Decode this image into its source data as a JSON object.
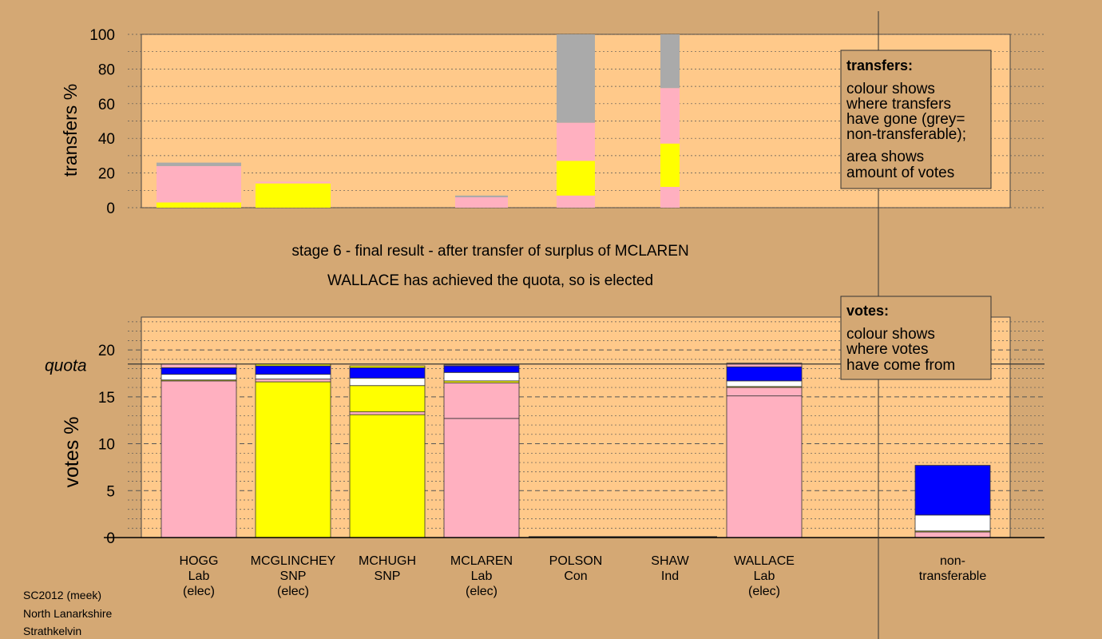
{
  "stage_lines": [
    "stage 6 - final result - after transfer of surplus of MCLAREN",
    "WALLACE has achieved the quota, so is elected"
  ],
  "transfers_legend": {
    "title": "transfers:",
    "lines": [
      "colour shows",
      "where transfers",
      "have gone (grey=",
      "non-transferable);"
    ],
    "lines2": [
      "area shows",
      "amount of votes"
    ]
  },
  "votes_legend": {
    "title": "votes:",
    "lines": [
      "colour shows",
      "where votes",
      "have come from"
    ]
  },
  "footer": [
    "SC2012 (meek)",
    "North Lanarkshire",
    "Strathkelvin"
  ],
  "quota_label": "quota",
  "colors": {
    "background": "#d4a874",
    "plot": "#ffc98a",
    "Lab": "#ffb0c0",
    "SNP": "#ffff00",
    "Con": "#0000ff",
    "Ind": "#ffffff",
    "nontransferable": "#aaaaaa"
  },
  "chart_data": [
    {
      "type": "bar",
      "name": "transfers",
      "ylabel": "transfers %",
      "ylim": [
        0,
        100
      ],
      "yticks": [
        0,
        20,
        40,
        60,
        80,
        100
      ],
      "grid": true,
      "columns": [
        {
          "segments": [
            {
              "color": "SNP",
              "value": 3
            },
            {
              "color": "Lab",
              "value": 21
            },
            {
              "color": "nontransferable",
              "value": 2
            }
          ]
        },
        {
          "segments": [
            {
              "color": "SNP",
              "value": 14
            },
            {
              "color": "Lab",
              "value": 1
            }
          ]
        },
        {
          "segments": []
        },
        {
          "segments": [
            {
              "color": "Lab",
              "value": 6
            },
            {
              "color": "nontransferable",
              "value": 1
            }
          ]
        },
        {
          "segments": [
            {
              "color": "Lab",
              "value": 7
            },
            {
              "color": "SNP",
              "value": 20
            },
            {
              "color": "Lab",
              "value": 22
            },
            {
              "color": "nontransferable",
              "value": 51
            }
          ]
        },
        {
          "segments": [
            {
              "color": "Lab",
              "value": 12
            },
            {
              "color": "SNP",
              "value": 25
            },
            {
              "color": "Lab",
              "value": 32
            },
            {
              "color": "nontransferable",
              "value": 31
            }
          ]
        }
      ]
    },
    {
      "type": "bar",
      "name": "votes",
      "ylabel": "votes %",
      "ylim": [
        0,
        23.5
      ],
      "yticks": [
        0,
        5,
        10,
        15,
        20
      ],
      "quota": 18.5,
      "grid": true,
      "categories": [
        {
          "name": "HOGG",
          "party": "Lab",
          "status": "(elec)"
        },
        {
          "name": "MCGLINCHEY",
          "party": "SNP",
          "status": "(elec)"
        },
        {
          "name": "MCHUGH",
          "party": "SNP",
          "status": ""
        },
        {
          "name": "MCLAREN",
          "party": "Lab",
          "status": "(elec)"
        },
        {
          "name": "POLSON",
          "party": "Con",
          "status": ""
        },
        {
          "name": "SHAW",
          "party": "Ind",
          "status": ""
        },
        {
          "name": "WALLACE",
          "party": "Lab",
          "status": "(elec)"
        },
        {
          "name": "non-",
          "party": "transferable",
          "status": ""
        }
      ],
      "series_stacks": [
        [
          {
            "color": "Lab",
            "value": 16.7
          },
          {
            "color": "SNP",
            "value": 0.1
          },
          {
            "color": "Ind",
            "value": 0.6
          },
          {
            "color": "Con",
            "value": 0.7
          },
          {
            "color": "Lab",
            "value": 0.4
          }
        ],
        [
          {
            "color": "SNP",
            "value": 16.6
          },
          {
            "color": "Lab",
            "value": 0.3
          },
          {
            "color": "Ind",
            "value": 0.5
          },
          {
            "color": "Con",
            "value": 0.9
          },
          {
            "color": "SNP",
            "value": 0.2
          }
        ],
        [
          {
            "color": "SNP",
            "value": 13.1
          },
          {
            "color": "Lab",
            "value": 0.3
          },
          {
            "color": "SNP",
            "value": 2.8
          },
          {
            "color": "Ind",
            "value": 0.8
          },
          {
            "color": "Con",
            "value": 1.1
          },
          {
            "color": "SNP",
            "value": 0.2
          }
        ],
        [
          {
            "color": "Lab",
            "value": 12.7
          },
          {
            "color": "Lab",
            "value": 3.8
          },
          {
            "color": "SNP",
            "value": 0.2
          },
          {
            "color": "Ind",
            "value": 0.9
          },
          {
            "color": "Con",
            "value": 0.7
          },
          {
            "color": "Lab",
            "value": 0.1
          }
        ],
        [],
        [],
        [
          {
            "color": "Lab",
            "value": 15.1
          },
          {
            "color": "Lab",
            "value": 0.9
          },
          {
            "color": "SNP",
            "value": 0.1
          },
          {
            "color": "Ind",
            "value": 0.6
          },
          {
            "color": "Con",
            "value": 1.5
          },
          {
            "color": "Lab",
            "value": 0.4
          }
        ],
        [
          {
            "color": "Lab",
            "value": 0.6
          },
          {
            "color": "SNP",
            "value": 0.1
          },
          {
            "color": "Ind",
            "value": 1.7
          },
          {
            "color": "Con",
            "value": 5.3
          }
        ]
      ]
    }
  ]
}
